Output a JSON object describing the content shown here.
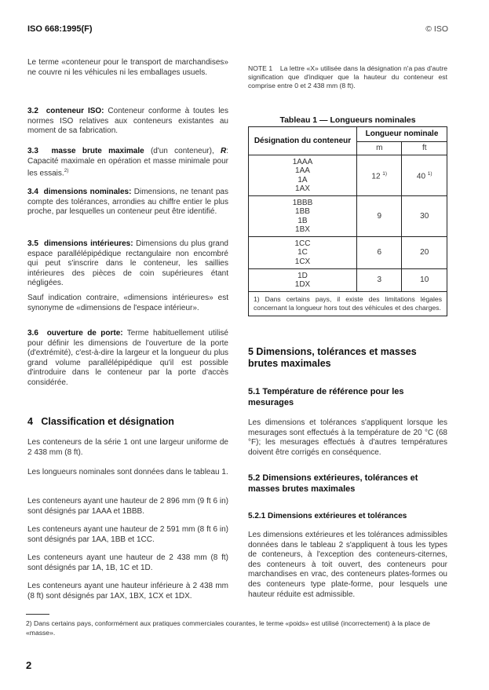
{
  "header": {
    "doc_id": "ISO 668:1995(F)",
    "copyright": "© ISO"
  },
  "left": {
    "intro": "Le terme «conteneur pour le transport de marchandises» ne couvre ni les véhicules ni les emballages usuels.",
    "s3_2": {
      "num": "3.2",
      "term": "conteneur ISO:",
      "text": " Conteneur conforme à toutes les normes ISO relatives aux conteneurs existantes au moment de sa fabrication."
    },
    "s3_3": {
      "num": "3.3",
      "term": "masse brute maximale",
      "text": " (d'un conteneur), ",
      "symbol": "R",
      "text2": ": Capacité maximale en opération et masse minimale pour les essais.",
      "note_ref": "2)"
    },
    "s3_4": {
      "num": "3.4",
      "term": "dimensions nominales:",
      "text": " Dimensions, ne tenant pas compte des tolérances, arrondies au chiffre entier le plus proche, par lesquelles un conteneur peut être identifié."
    },
    "s3_5": {
      "num": "3.5",
      "term": "dimensions intérieures:",
      "text": " Dimensions du plus grand espace parallélépipédique rectangulaire non encombré qui peut s'inscrire dans le conteneur, les saillies intérieures des pièces de coin supérieures étant négligées."
    },
    "sauf": "Sauf indication contraire, «dimensions intérieures» est synonyme de «dimensions de l'espace intérieur».",
    "s3_6": {
      "num": "3.6",
      "term": "ouverture de porte:",
      "text": " Terme habituellement utilisé pour définir les dimensions de l'ouverture de la porte (d'extrémité), c'est-à-dire la largeur et la longueur du plus grand volume parallélépipédique qu'il est possible d'introduire dans le conteneur par la porte d'accès considérée."
    },
    "s4": {
      "heading": "4   Classification et désignation",
      "paras": [
        "Les conteneurs de la série 1 ont une largeur uniforme de 2 438 mm (8 ft).",
        "Les longueurs nominales sont données dans le tableau 1.",
        "Les conteneurs ayant une hauteur de 2 896 mm (9 ft 6 in) sont désignés par 1AAA et 1BBB.",
        "Les conteneurs ayant une hauteur de 2 591 mm (8 ft 6 in) sont désignés par 1AA, 1BB et 1CC.",
        "Les conteneurs ayant une hauteur de 2 438 mm (8 ft) sont désignés par 1A, 1B, 1C et 1D.",
        "Les conteneurs ayant une hauteur inférieure à 2 438 mm (8 ft) sont désignés par 1AX, 1BX, 1CX et 1DX."
      ]
    }
  },
  "right": {
    "note1": {
      "label": "NOTE 1",
      "text": "La lettre «X» utilisée dans la désignation n'a pas d'autre signification que d'indiquer que la hauteur du conteneur est comprise entre 0 et 2 438 mm (8 ft)."
    },
    "table1": {
      "title": "Tableau 1 — Longueurs nominales",
      "col_designation": "Désignation du conteneur",
      "col_group": "Longueur nominale",
      "col_m": "m",
      "col_ft": "ft",
      "rows": [
        {
          "designations": "1AAA\n1AA\n1A\n1AX",
          "m": "12",
          "ft": "40",
          "note": "1)"
        },
        {
          "designations": "1BBB\n1BB\n1B\n1BX",
          "m": "9",
          "ft": "30"
        },
        {
          "designations": "1CC\n1C\n1CX",
          "m": "6",
          "ft": "20"
        },
        {
          "designations": "1D\n1DX",
          "m": "3",
          "ft": "10"
        }
      ],
      "footnote": "1)  Dans certains pays, il existe des limitations légales concernant la longueur hors tout des véhicules et des charges."
    },
    "s5": {
      "heading": "5   Dimensions, tolérances et masses brutes maximales"
    },
    "s5_1": {
      "heading": "5.1   Température de référence pour les mesurages",
      "text": "Les dimensions et tolérances s'appliquent lorsque les mesurages sont effectués à la température de 20 °C (68 °F); les mesurages effectués à d'autres températures doivent être corrigés en conséquence."
    },
    "s5_2": {
      "heading": "5.2   Dimensions extérieures, tolérances et masses brutes maximales"
    },
    "s5_2_1": {
      "heading": "5.2.1   Dimensions extérieures et tolérances",
      "text": "Les dimensions extérieures et les tolérances admissibles données dans le tableau 2 s'appliquent à tous les types de conteneurs, à l'exception des conteneurs-citernes, des conteneurs à toit ouvert, des conteneurs pour marchandises en vrac, des conteneurs plates-formes ou des conteneurs type plate-forme, pour lesquels une hauteur réduite est admissible."
    }
  },
  "footnote2": "2)  Dans certains pays, conformément aux pratiques commerciales courantes, le terme «poids» est utilisé (incorrectement) à la place de «masse».",
  "page_number": "2"
}
